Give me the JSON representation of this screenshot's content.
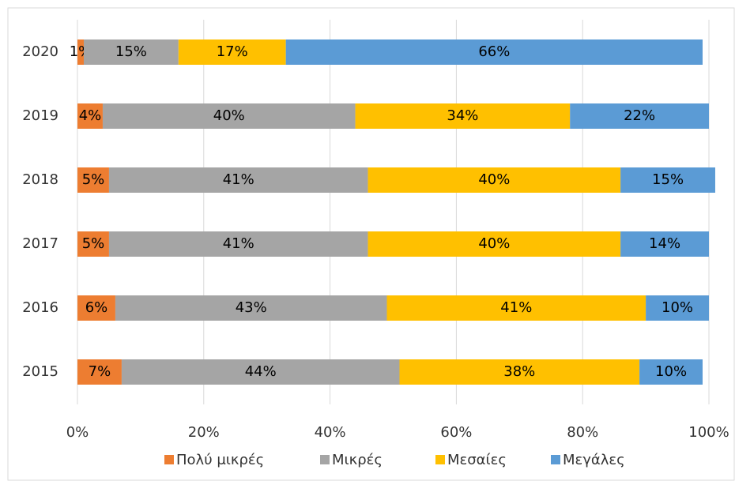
{
  "chart_data": {
    "type": "stacked_barh",
    "categories": [
      "2020",
      "2019",
      "2018",
      "2017",
      "2016",
      "2015"
    ],
    "series": [
      {
        "name": "Πολύ μικρές",
        "color": "#ED7D31",
        "values": [
          1,
          4,
          5,
          5,
          6,
          7
        ],
        "value_labels": [
          "1%",
          "4%",
          "5%",
          "5%",
          "6%",
          "7%"
        ]
      },
      {
        "name": "Μικρές",
        "color": "#A5A5A5",
        "values": [
          15,
          40,
          41,
          41,
          43,
          44
        ],
        "value_labels": [
          "15%",
          "40%",
          "41%",
          "41%",
          "43%",
          "44%"
        ]
      },
      {
        "name": "Μεσαίες",
        "color": "#FFC000",
        "values": [
          17,
          34,
          40,
          40,
          41,
          38
        ],
        "value_labels": [
          "17%",
          "34%",
          "40%",
          "40%",
          "41%",
          "38%"
        ]
      },
      {
        "name": "Μεγάλες",
        "color": "#5B9BD5",
        "values": [
          66,
          22,
          15,
          14,
          10,
          10
        ],
        "value_labels": [
          "66%",
          "22%",
          "15%",
          "14%",
          "10%",
          "10%"
        ]
      }
    ],
    "xlim": [
      0,
      100
    ],
    "xticks": [
      {
        "value": 0,
        "label": "0%"
      },
      {
        "value": 20,
        "label": "20%"
      },
      {
        "value": 40,
        "label": "40%"
      },
      {
        "value": 60,
        "label": "60%"
      },
      {
        "value": 80,
        "label": "80%"
      },
      {
        "value": 100,
        "label": "100%"
      }
    ],
    "grid": true,
    "legend": "bottom"
  }
}
